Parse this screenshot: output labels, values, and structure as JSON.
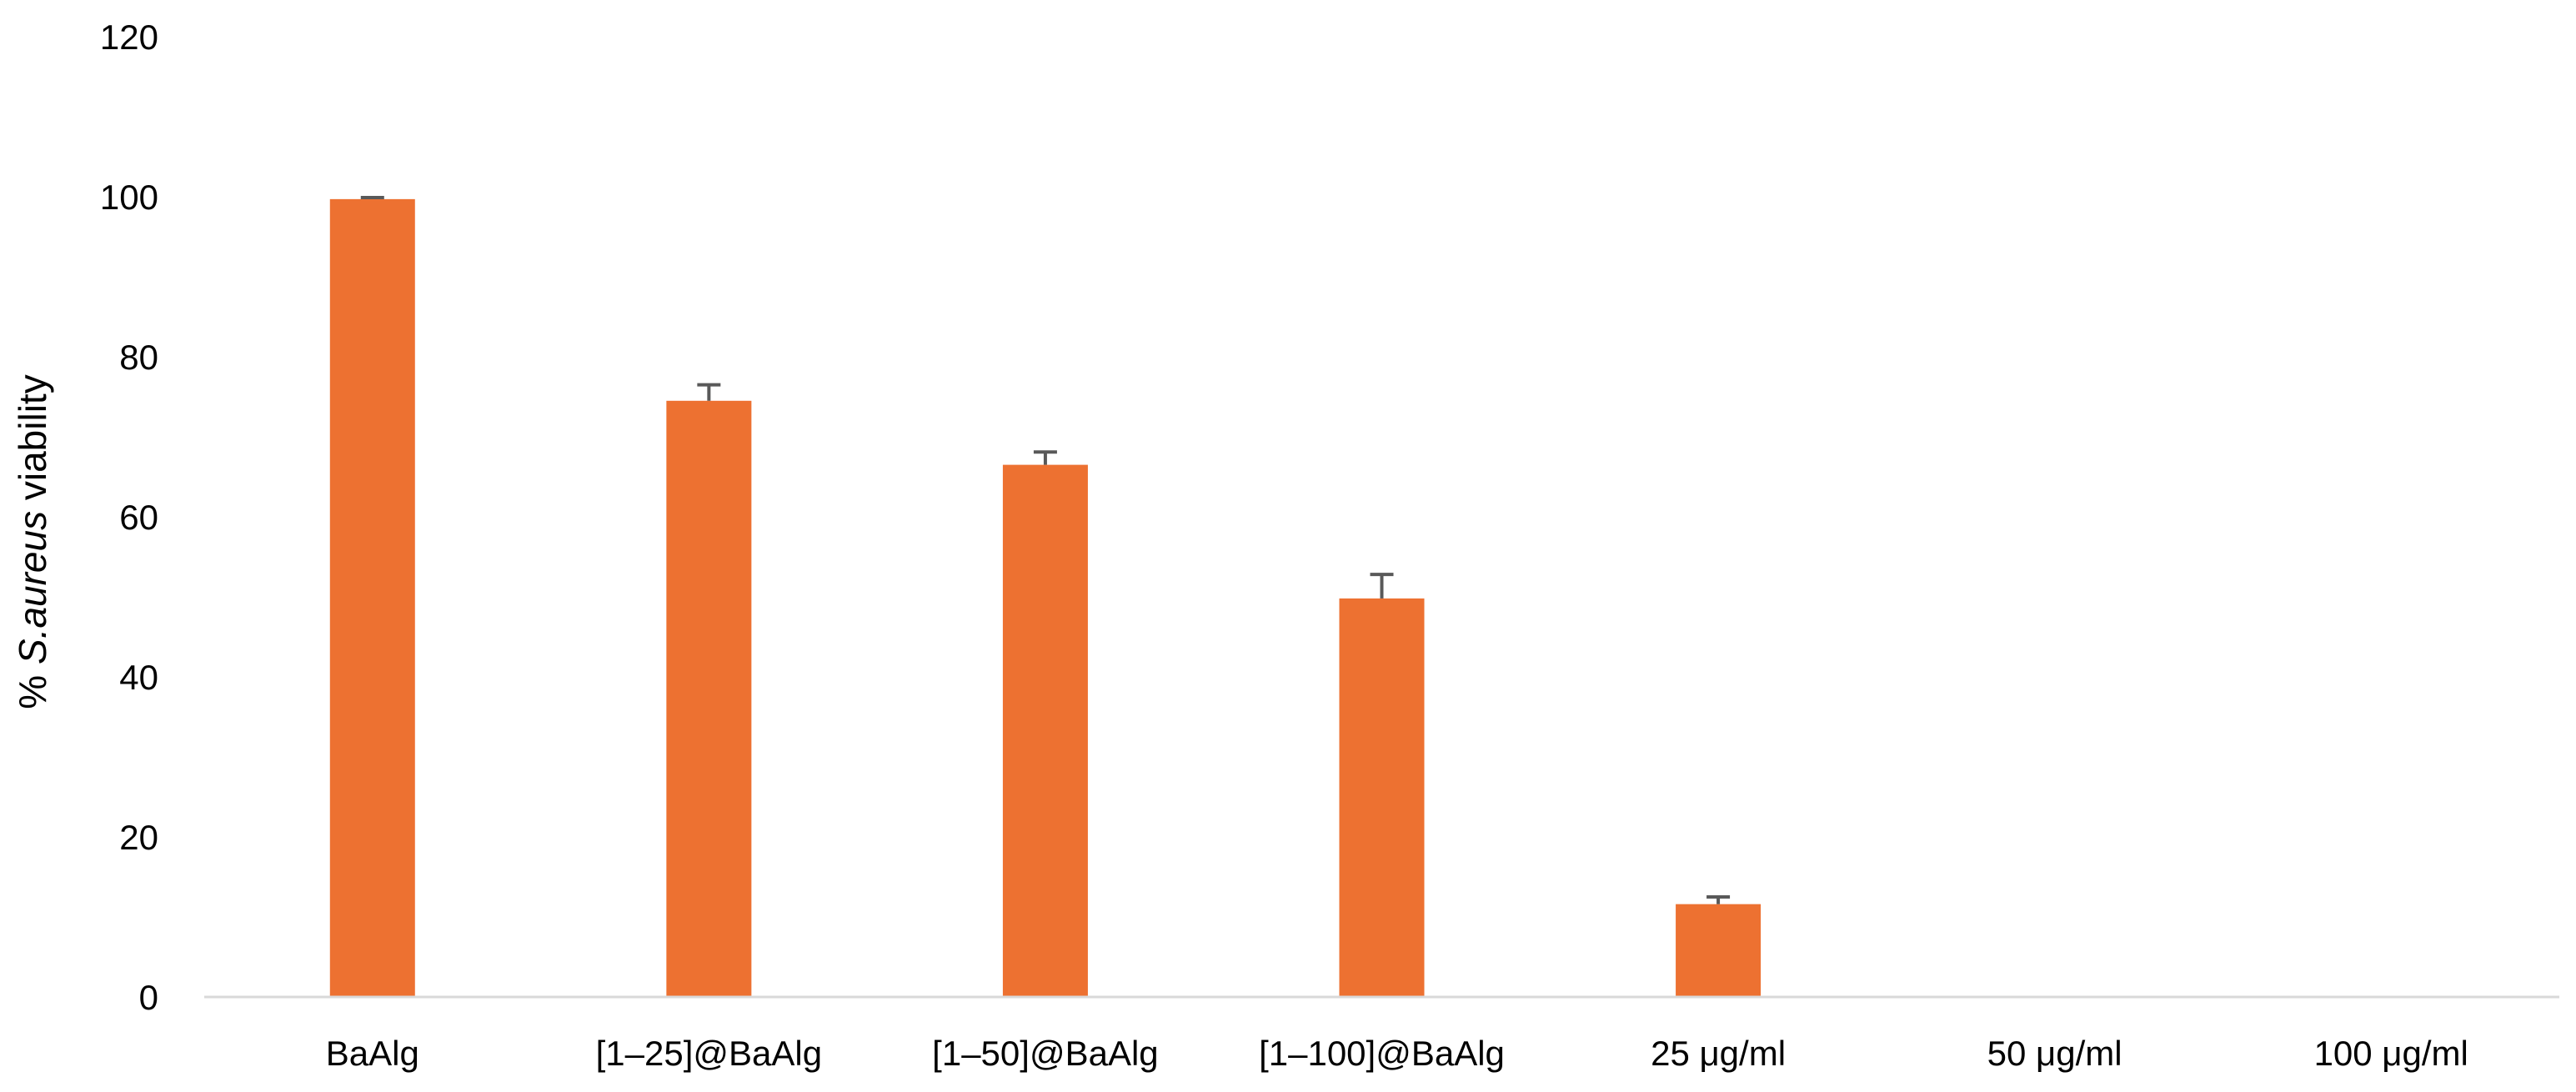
{
  "chart_data": {
    "type": "bar",
    "title": "",
    "xlabel": "",
    "ylabel": {
      "prefix": "% ",
      "italic": "S.aureus",
      "suffix": " viability"
    },
    "categories": [
      "BaAlg",
      "[1–25]@BaAlg",
      "[1–50]@BaAlg",
      "[1–100]@BaAlg",
      "25 μg/ml",
      "50 μg/ml",
      "100 μg/ml"
    ],
    "values": [
      99.7,
      74.5,
      66.5,
      49.8,
      11.6,
      0,
      0
    ],
    "error": [
      0.2,
      2.0,
      1.6,
      3.0,
      0.9,
      0,
      0
    ],
    "ylim": [
      0,
      120
    ],
    "yticks": [
      0,
      20,
      40,
      60,
      80,
      100,
      120
    ],
    "grid": false,
    "legend": "none",
    "bar_color": "#ED7131",
    "error_color": "#595959",
    "axis_color": "#D9D9D9"
  }
}
